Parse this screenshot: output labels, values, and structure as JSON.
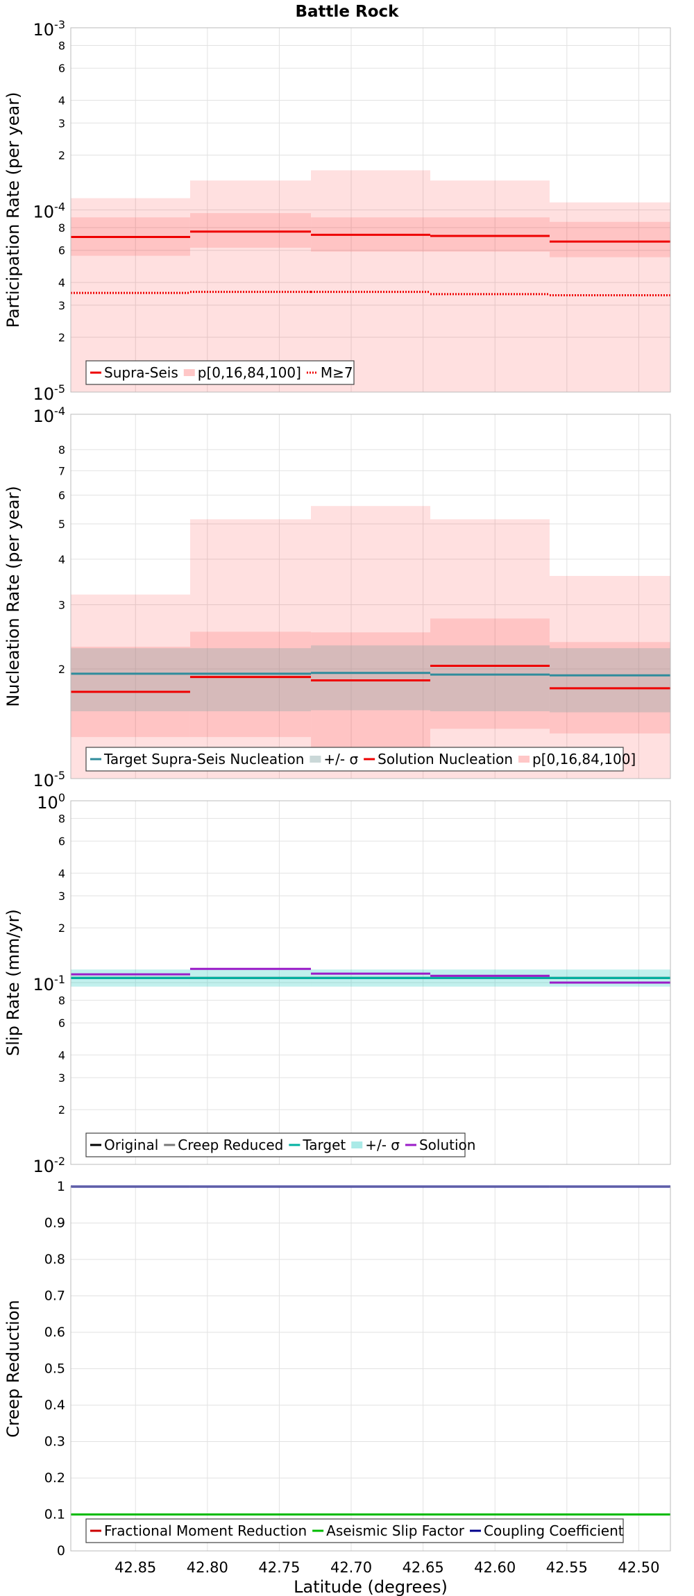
{
  "title": "Battle Rock",
  "chart_data": [
    {
      "type": "line",
      "ylabel": "Participation Rate (per year)",
      "yscale": "log",
      "ylim": [
        1e-05,
        0.001
      ],
      "xlim": [
        42.895,
        42.478
      ],
      "x_inverted": true,
      "bin_edges": [
        42.895,
        42.812,
        42.728,
        42.645,
        42.562,
        42.478
      ],
      "series": [
        {
          "name": "Supra-Seis",
          "kind": "step",
          "color": "#ee0000",
          "style": "solid",
          "values": [
            7.1e-05,
            7.6e-05,
            7.3e-05,
            7.2e-05,
            6.7e-05
          ]
        },
        {
          "name": "p[0,16,84,100]",
          "kind": "band",
          "color": "#ff0000",
          "opacity": 0.12,
          "lower": [
            1e-05,
            1e-05,
            1e-05,
            1e-05,
            1e-05
          ],
          "upper": [
            0.000116,
            0.000145,
            0.000165,
            0.000145,
            0.00011
          ]
        },
        {
          "kind": "band",
          "color": "#ff0000",
          "opacity": 0.12,
          "lower": [
            5.6e-05,
            6.2e-05,
            5.9e-05,
            5.9e-05,
            5.5e-05
          ],
          "upper": [
            9.1e-05,
            9.6e-05,
            9.1e-05,
            9.1e-05,
            8.6e-05
          ]
        },
        {
          "name": "M≥7",
          "kind": "step",
          "color": "#ee0000",
          "style": "dotted",
          "values": [
            3.5e-05,
            3.55e-05,
            3.55e-05,
            3.45e-05,
            3.4e-05
          ]
        }
      ],
      "legend": [
        "Supra-Seis",
        "p[0,16,84,100]",
        "M≥7"
      ],
      "yticks": [
        {
          "v": 1e-05,
          "base": "10",
          "exp": "-5"
        },
        {
          "v": 2e-05,
          "label": "2"
        },
        {
          "v": 3e-05,
          "label": "3"
        },
        {
          "v": 4e-05,
          "label": "4"
        },
        {
          "v": 6e-05,
          "label": "6"
        },
        {
          "v": 8e-05,
          "label": "8"
        },
        {
          "v": 0.0001,
          "base": "10",
          "exp": "-4"
        },
        {
          "v": 0.0002,
          "label": "2"
        },
        {
          "v": 0.0003,
          "label": "3"
        },
        {
          "v": 0.0004,
          "label": "4"
        },
        {
          "v": 0.0006,
          "label": "6"
        },
        {
          "v": 0.0008,
          "label": "8"
        },
        {
          "v": 0.001,
          "base": "10",
          "exp": "-3"
        }
      ]
    },
    {
      "type": "line",
      "ylabel": "Nucleation Rate (per year)",
      "yscale": "log",
      "ylim": [
        1e-05,
        0.0001
      ],
      "xlim": [
        42.895,
        42.478
      ],
      "x_inverted": true,
      "bin_edges": [
        42.895,
        42.812,
        42.728,
        42.645,
        42.562,
        42.478
      ],
      "series": [
        {
          "name": "p[0,16,84,100]",
          "kind": "band",
          "color": "#ff0000",
          "opacity": 0.12,
          "lower": [
            1e-05,
            1e-05,
            1e-05,
            1e-05,
            1e-05
          ],
          "upper": [
            3.2e-05,
            5.15e-05,
            5.6e-05,
            5.15e-05,
            3.6e-05
          ]
        },
        {
          "kind": "band",
          "color": "#ff0000",
          "opacity": 0.12,
          "lower": [
            1.3e-05,
            1.3e-05,
            1.2e-05,
            1.37e-05,
            1.33e-05
          ],
          "upper": [
            2.3e-05,
            2.53e-05,
            2.52e-05,
            2.75e-05,
            2.37e-05
          ]
        },
        {
          "name": "+/- σ",
          "kind": "band",
          "color": "#8aa8a8",
          "opacity": 0.35,
          "lower": [
            1.53e-05,
            1.53e-05,
            1.54e-05,
            1.53e-05,
            1.52e-05
          ],
          "upper": [
            2.28e-05,
            2.28e-05,
            2.32e-05,
            2.32e-05,
            2.28e-05
          ]
        },
        {
          "name": "Target Supra-Seis Nucleation",
          "kind": "step",
          "color": "#2f8c9c",
          "style": "solid",
          "values": [
            1.94e-05,
            1.94e-05,
            1.95e-05,
            1.93e-05,
            1.92e-05
          ]
        },
        {
          "name": "Solution Nucleation",
          "kind": "step",
          "color": "#ee0000",
          "style": "solid",
          "values": [
            1.73e-05,
            1.9e-05,
            1.86e-05,
            2.04e-05,
            1.77e-05
          ]
        }
      ],
      "legend": [
        "Target Supra-Seis Nucleation",
        "+/- σ",
        "Solution Nucleation",
        "p[0,16,84,100]"
      ],
      "yticks": [
        {
          "v": 1e-05,
          "base": "10",
          "exp": "-5"
        },
        {
          "v": 2e-05,
          "label": "2"
        },
        {
          "v": 3e-05,
          "label": "3"
        },
        {
          "v": 4e-05,
          "label": "4"
        },
        {
          "v": 5e-05,
          "label": "5"
        },
        {
          "v": 6e-05,
          "label": "6"
        },
        {
          "v": 7e-05,
          "label": "7"
        },
        {
          "v": 8e-05,
          "label": "8"
        },
        {
          "v": 0.0001,
          "base": "10",
          "exp": "-4"
        }
      ]
    },
    {
      "type": "line",
      "ylabel": "Slip Rate (mm/yr)",
      "yscale": "log",
      "ylim": [
        0.01,
        1
      ],
      "xlim": [
        42.895,
        42.478
      ],
      "x_inverted": true,
      "bin_edges": [
        42.895,
        42.812,
        42.728,
        42.645,
        42.562,
        42.478
      ],
      "series": [
        {
          "name": "+/- σ",
          "kind": "band",
          "color": "#20c8c0",
          "opacity": 0.28,
          "lower": [
            0.095,
            0.095,
            0.095,
            0.095,
            0.095
          ],
          "upper": [
            0.118,
            0.118,
            0.118,
            0.118,
            0.118
          ]
        },
        {
          "name": "Original",
          "kind": "step",
          "color": "#000000",
          "style": "solid",
          "values": [
            0.106,
            0.106,
            0.106,
            0.106,
            0.106
          ]
        },
        {
          "name": "Creep Reduced",
          "kind": "step",
          "color": "#777777",
          "style": "solid",
          "values": [
            0.106,
            0.106,
            0.106,
            0.106,
            0.106
          ]
        },
        {
          "name": "Target",
          "kind": "step",
          "color": "#00b0a0",
          "style": "solid",
          "values": [
            0.106,
            0.106,
            0.106,
            0.106,
            0.106
          ]
        },
        {
          "name": "Solution",
          "kind": "step",
          "color": "#9b1cc8",
          "style": "solid",
          "values": [
            0.111,
            0.119,
            0.112,
            0.109,
            0.1
          ]
        }
      ],
      "legend": [
        "Original",
        "Creep Reduced",
        "Target",
        "+/- σ",
        "Solution"
      ],
      "yticks": [
        {
          "v": 0.01,
          "base": "10",
          "exp": "-2"
        },
        {
          "v": 0.02,
          "label": "2"
        },
        {
          "v": 0.03,
          "label": "3"
        },
        {
          "v": 0.04,
          "label": "4"
        },
        {
          "v": 0.06,
          "label": "6"
        },
        {
          "v": 0.08,
          "label": "8"
        },
        {
          "v": 0.1,
          "base": "10",
          "exp": "-1"
        },
        {
          "v": 0.2,
          "label": "2"
        },
        {
          "v": 0.3,
          "label": "3"
        },
        {
          "v": 0.4,
          "label": "4"
        },
        {
          "v": 0.6,
          "label": "6"
        },
        {
          "v": 0.8,
          "label": "8"
        },
        {
          "v": 1,
          "base": "10",
          "exp": "0"
        }
      ]
    },
    {
      "type": "line",
      "ylabel": "Creep Reduction",
      "yscale": "linear",
      "ylim": [
        0,
        1
      ],
      "xlim": [
        42.895,
        42.478
      ],
      "x_inverted": true,
      "xlabel": "Latitude (degrees)",
      "xticks": [
        "42.85",
        "42.80",
        "42.75",
        "42.70",
        "42.65",
        "42.60",
        "42.55",
        "42.50"
      ],
      "bin_edges": [
        42.895,
        42.812,
        42.728,
        42.645,
        42.562,
        42.478
      ],
      "series": [
        {
          "name": "Fractional Moment Reduction",
          "kind": "step",
          "color": "#cc0000",
          "style": "solid",
          "values": [
            0.1,
            0.1,
            0.1,
            0.1,
            0.1
          ]
        },
        {
          "name": "Aseismic Slip Factor",
          "kind": "step",
          "color": "#00bb00",
          "style": "solid",
          "values": [
            0.1,
            0.1,
            0.1,
            0.1,
            0.1
          ]
        },
        {
          "name": "Coupling Coefficient",
          "kind": "step",
          "color": "#00008b",
          "style": "solid",
          "values": [
            1,
            1,
            1,
            1,
            1
          ]
        }
      ],
      "legend": [
        "Fractional Moment Reduction",
        "Aseismic Slip Factor",
        "Coupling Coefficient"
      ],
      "yticks": [
        {
          "v": 0,
          "label": "0"
        },
        {
          "v": 0.1,
          "label": "0.1"
        },
        {
          "v": 0.2,
          "label": "0.2"
        },
        {
          "v": 0.3,
          "label": "0.3"
        },
        {
          "v": 0.4,
          "label": "0.4"
        },
        {
          "v": 0.5,
          "label": "0.5"
        },
        {
          "v": 0.6,
          "label": "0.6"
        },
        {
          "v": 0.7,
          "label": "0.7"
        },
        {
          "v": 0.8,
          "label": "0.8"
        },
        {
          "v": 0.9,
          "label": "0.9"
        },
        {
          "v": 1,
          "label": "1"
        }
      ]
    }
  ]
}
